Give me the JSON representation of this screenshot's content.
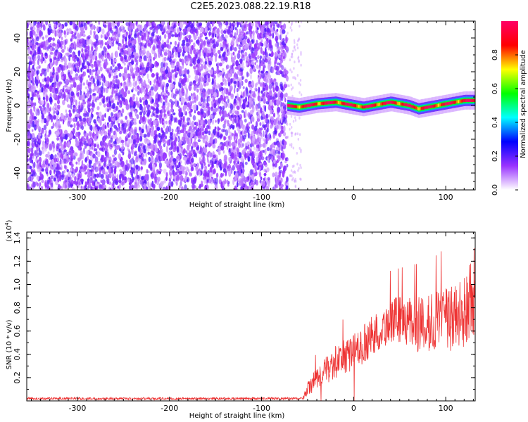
{
  "title": "C2E5.2023.088.22.19.R18",
  "chart_data": [
    {
      "type": "heatmap",
      "xlabel": "Height of straight line (km)",
      "ylabel": "Frequency (Hz)",
      "xlim": [
        -355,
        132
      ],
      "ylim": [
        -50,
        50
      ],
      "xticks": [
        -300,
        -200,
        -100,
        0,
        100
      ],
      "yticks": [
        -40,
        -20,
        0,
        20,
        40
      ],
      "noise_region_x": [
        -355,
        -72
      ],
      "signal_start_x": -72,
      "signal_track": {
        "x": [
          -72,
          -60,
          -40,
          -20,
          0,
          10,
          20,
          40,
          60,
          70,
          80,
          100,
          110,
          120,
          132
        ],
        "y": [
          0,
          -1,
          1,
          2,
          0,
          -1,
          0,
          2,
          0,
          -2,
          -1,
          1,
          2,
          3,
          3
        ]
      },
      "colorbar": {
        "label": "Normalized spectral amplitude",
        "range": [
          0.0,
          1.0
        ],
        "ticks": [
          0.0,
          0.2,
          0.4,
          0.6,
          0.8
        ],
        "colors": [
          "#ffffff",
          "#9933ff",
          "#0000ff",
          "#00ffff",
          "#00ff00",
          "#ffff00",
          "#ff0000",
          "#ff0066"
        ]
      }
    },
    {
      "type": "line",
      "xlabel": "Height of straight line (km)",
      "ylabel": "SNR (10 * v/v)",
      "y_multiplier": "(x10^4)",
      "y_multiplier_base": "(x10",
      "y_multiplier_exp": "4",
      "y_multiplier_close": ")",
      "xlim": [
        -355,
        132
      ],
      "ylim": [
        0,
        1.45
      ],
      "xticks": [
        -300,
        -200,
        -100,
        0,
        100
      ],
      "yticks": [
        0.2,
        0.4,
        0.6,
        0.8,
        1.0,
        1.2,
        1.4
      ],
      "color": "#ee3333",
      "envelope": {
        "x": [
          -355,
          -55,
          -50,
          -40,
          -30,
          -20,
          -10,
          0,
          10,
          20,
          30,
          40,
          50,
          60,
          70,
          80,
          90,
          100,
          110,
          120,
          125,
          130,
          132
        ],
        "y_mid": [
          0.02,
          0.02,
          0.1,
          0.2,
          0.26,
          0.33,
          0.38,
          0.42,
          0.48,
          0.55,
          0.62,
          0.68,
          0.7,
          0.68,
          0.65,
          0.66,
          0.68,
          0.7,
          0.72,
          0.75,
          0.8,
          0.9,
          1.0
        ],
        "y_amp": [
          0.01,
          0.01,
          0.06,
          0.1,
          0.12,
          0.14,
          0.15,
          0.16,
          0.17,
          0.18,
          0.18,
          0.2,
          0.2,
          0.22,
          0.24,
          0.25,
          0.26,
          0.28,
          0.3,
          0.32,
          0.35,
          0.4,
          0.4
        ]
      }
    }
  ]
}
